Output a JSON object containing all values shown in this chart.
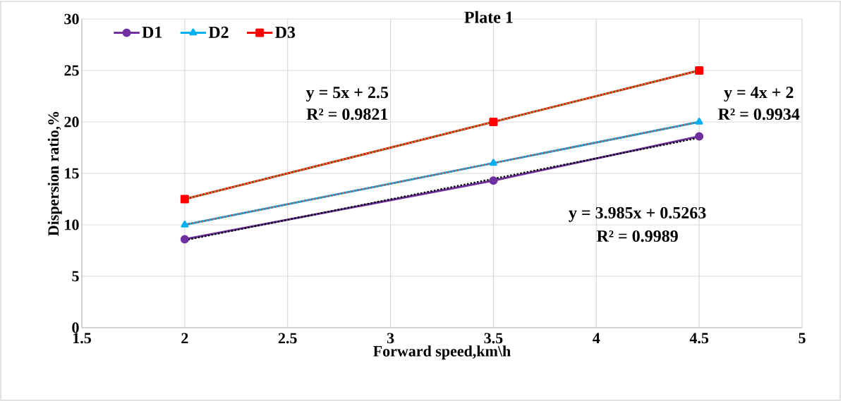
{
  "chart_data": {
    "type": "line",
    "title": "Plate 1",
    "xlabel": "Forward speed,km\\h",
    "ylabel": "Dispersion ratio,%",
    "x": [
      2,
      3.5,
      4.5
    ],
    "series": [
      {
        "name": "D1",
        "color": "#7030a0",
        "values": [
          8.6,
          14.3,
          18.6
        ],
        "marker": "circle",
        "line_style": "solid"
      },
      {
        "name": "D2",
        "color": "#00b0f0",
        "values": [
          10,
          16,
          20
        ],
        "marker": "triangle",
        "line_style": "solid"
      },
      {
        "name": "D3",
        "color": "#ff0000",
        "values": [
          12.5,
          20,
          25
        ],
        "marker": "square",
        "line_style": "solid"
      },
      {
        "type": "line",
        "color": "#000000",
        "values": [
          8.5,
          14.47,
          18.46
        ],
        "marker": "none",
        "line_style": "dotted"
      },
      {
        "type": "line",
        "color": "#c0504d",
        "values": [
          10,
          16,
          20
        ],
        "marker": "none",
        "line_style": "dotted"
      },
      {
        "type": "line",
        "color": "#70ad47",
        "values": [
          12.5,
          20,
          25
        ],
        "marker": "none",
        "line_style": "dotted"
      }
    ],
    "xlim": [
      1.5,
      5
    ],
    "ylim": [
      0,
      30
    ],
    "xticks": [
      1.5,
      2,
      2.5,
      3,
      3.5,
      4,
      4.5,
      5
    ],
    "yticks": [
      0,
      5,
      10,
      15,
      20,
      25,
      30
    ],
    "grid": true,
    "legend": "top left",
    "annotations": [
      "y = 5x + 2.5",
      "R² = 0.9821",
      "y = 4x + 2",
      "R² = 0.9934",
      "y = 3.985x + 0.5263",
      "R² = 0.9989"
    ]
  }
}
